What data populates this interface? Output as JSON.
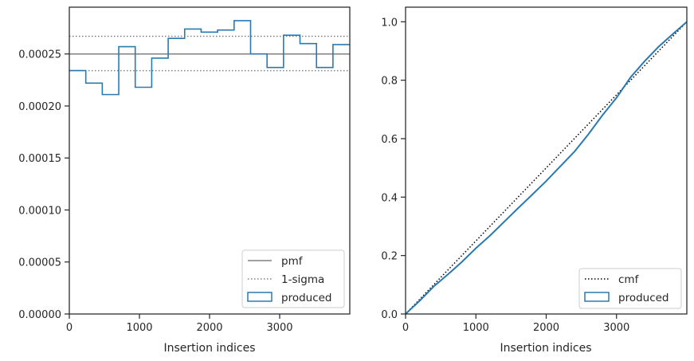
{
  "colors": {
    "produced": "#2a7ab0",
    "pmf": "#808080",
    "sigma": "#808080",
    "cmf": "#000000",
    "axis": "#262626"
  },
  "chart_data": [
    {
      "type": "histogram",
      "xlabel": "Insertion indices",
      "ylabel": "",
      "xlim": [
        0,
        4000
      ],
      "ylim": [
        0,
        0.000295
      ],
      "x_ticks": [
        0,
        1000,
        2000,
        3000
      ],
      "x_tick_labels": [
        "0",
        "1000",
        "2000",
        "3000"
      ],
      "y_ticks": [
        0,
        5e-05,
        0.0001,
        0.00015,
        0.0002,
        0.00025
      ],
      "y_tick_labels": [
        "0.00000",
        "0.00005",
        "0.00010",
        "0.00015",
        "0.00020",
        "0.00025"
      ],
      "legend_position": "lower right",
      "pmf": 0.00025,
      "sigma_band": [
        0.000234,
        0.000267
      ],
      "bin_edges": [
        0,
        235,
        470,
        705,
        940,
        1175,
        1410,
        1645,
        1880,
        2115,
        2350,
        2585,
        2820,
        3055,
        3290,
        3525,
        3760,
        4000
      ],
      "bin_values": [
        0.000234,
        0.000222,
        0.000211,
        0.000257,
        0.000218,
        0.000246,
        0.000265,
        0.000274,
        0.000271,
        0.000273,
        0.000282,
        0.00025,
        0.000237,
        0.000268,
        0.00026,
        0.000237,
        0.000259
      ],
      "legend": [
        "pmf",
        "1-sigma",
        "produced"
      ]
    },
    {
      "type": "line",
      "xlabel": "Insertion indices",
      "ylabel": "",
      "xlim": [
        0,
        4000
      ],
      "ylim": [
        0,
        1.05
      ],
      "x_ticks": [
        0,
        1000,
        2000,
        3000
      ],
      "x_tick_labels": [
        "0",
        "1000",
        "2000",
        "3000"
      ],
      "y_ticks": [
        0,
        0.2,
        0.4,
        0.6,
        0.8,
        1.0
      ],
      "y_tick_labels": [
        "0.0",
        "0.2",
        "0.4",
        "0.6",
        "0.8",
        "1.0"
      ],
      "legend_position": "lower right",
      "cmf": {
        "x": [
          0,
          4000
        ],
        "y": [
          0,
          1
        ]
      },
      "produced": {
        "x": [
          0,
          200,
          400,
          600,
          800,
          1000,
          1200,
          1400,
          1600,
          1800,
          2000,
          2200,
          2400,
          2600,
          2800,
          3000,
          3200,
          3400,
          3600,
          3800,
          4000
        ],
        "y": [
          0,
          0.045,
          0.094,
          0.135,
          0.178,
          0.225,
          0.268,
          0.315,
          0.362,
          0.408,
          0.455,
          0.505,
          0.555,
          0.615,
          0.68,
          0.74,
          0.81,
          0.865,
          0.915,
          0.958,
          1.0
        ]
      },
      "legend": [
        "cmf",
        "produced"
      ]
    }
  ]
}
